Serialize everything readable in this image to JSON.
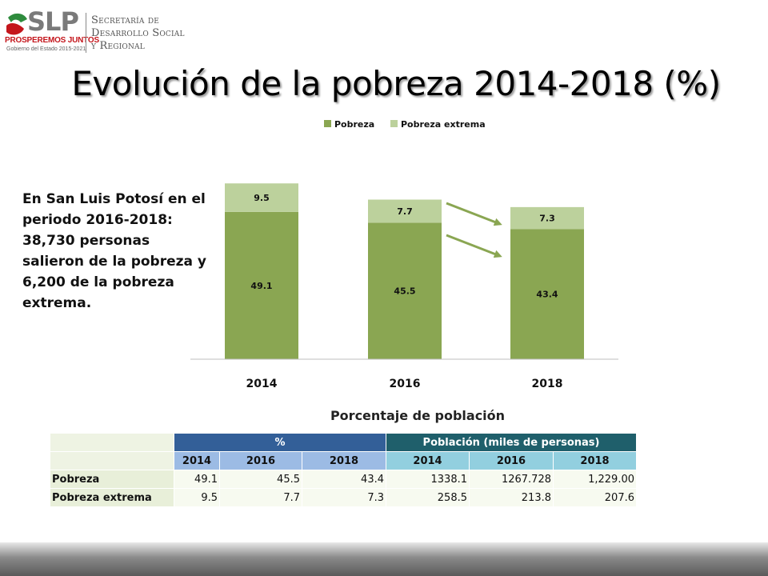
{
  "logo": {
    "brand": "SLP",
    "motto": "PROSPEREMOS JUNTOS",
    "government": "Gobierno del Estado 2015-2021",
    "department_lines": [
      "Secretaría de",
      "Desarrollo Social",
      "y Regional"
    ],
    "colors": {
      "red": "#c4161c",
      "green": "#2e8b3d",
      "gray": "#7a7a7a"
    }
  },
  "title": "Evolución de la pobreza 2014-2018 (%)",
  "note": "En San Luis Potosí en el periodo 2016-2018: 38,730 personas salieron de la pobreza y 6,200 de la pobreza extrema.",
  "chart_data": {
    "type": "bar",
    "stacked": true,
    "title": "",
    "xlabel": "",
    "ylabel": "",
    "categories": [
      "2014",
      "2016",
      "2018"
    ],
    "series": [
      {
        "name": "Pobreza",
        "values": [
          49.1,
          45.5,
          43.4
        ],
        "color": "#8aa652"
      },
      {
        "name": "Pobreza extrema",
        "values": [
          9.5,
          7.7,
          7.3
        ],
        "color": "#bcd19c"
      }
    ],
    "legend_position": "top",
    "grid": false,
    "annotations": [
      "arrow-pointing-to-2018-pobreza-extrema",
      "arrow-pointing-to-2018-pobreza"
    ],
    "arrow_color": "#8aa652"
  },
  "table": {
    "title": "Porcentaje de población",
    "group_headers": [
      "%",
      "Población  (miles de personas)"
    ],
    "year_headers": [
      "2014",
      "2016",
      "2018",
      "2014",
      "2016",
      "2018"
    ],
    "rows": [
      {
        "label": "Pobreza",
        "values": [
          "49.1",
          "45.5",
          "43.4",
          "1338.1",
          "1267.728",
          "1,229.00"
        ]
      },
      {
        "label": "Pobreza extrema",
        "values": [
          "9.5",
          "7.7",
          "7.3",
          "258.5",
          "213.8",
          "207.6"
        ]
      }
    ]
  }
}
